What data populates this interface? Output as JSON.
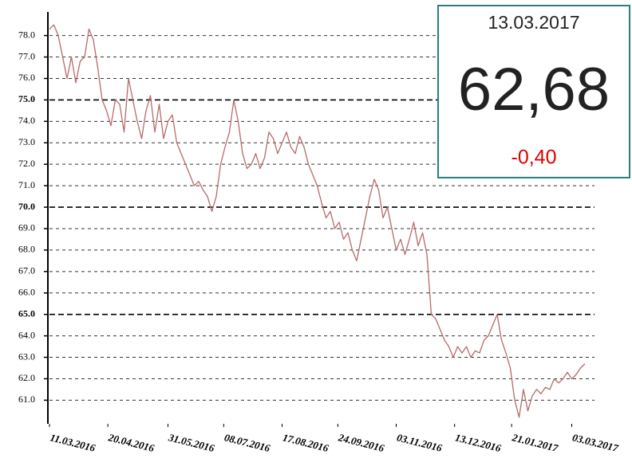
{
  "chart_data": {
    "type": "line",
    "series": [
      {
        "color": "#b86a6a",
        "values": [
          78.3,
          78.5,
          78.0,
          77.0,
          76.0,
          77.0,
          75.8,
          76.8,
          77.0,
          78.3,
          77.8,
          76.5,
          75.0,
          74.5,
          73.8,
          75.0,
          74.8,
          73.5,
          76.0,
          75.0,
          74.0,
          73.2,
          74.5,
          75.2,
          73.5,
          74.8,
          73.2,
          74.0,
          74.3,
          73.0,
          72.5,
          72.0,
          71.5,
          71.0,
          71.2,
          70.8,
          70.5,
          69.8,
          70.5,
          72.0,
          72.8,
          73.5,
          75.0,
          74.0,
          72.5,
          71.8,
          72.0,
          72.5,
          71.8,
          72.3,
          73.5,
          73.2,
          72.5,
          73.0,
          73.5,
          72.8,
          72.5,
          73.3,
          72.8,
          72.0,
          71.5,
          71.0,
          70.2,
          69.5,
          69.8,
          69.0,
          69.3,
          68.5,
          68.8,
          68.0,
          67.5,
          68.5,
          69.5,
          70.5,
          71.3,
          70.8,
          69.5,
          70.0,
          69.0,
          68.0,
          68.5,
          67.8,
          68.5,
          69.3,
          68.2,
          68.8,
          67.8,
          65.0,
          64.8,
          64.3,
          63.8,
          63.5,
          63.0,
          63.5,
          63.2,
          63.5,
          63.0,
          63.3,
          63.2,
          63.8,
          64.0,
          64.5,
          65.0,
          63.8,
          63.2,
          62.5,
          61.0,
          60.2,
          61.5,
          60.5,
          61.2,
          61.5,
          61.3,
          61.6,
          61.5,
          62.0,
          61.8,
          62.0,
          62.3,
          62.0,
          62.2,
          62.5,
          62.7
        ]
      }
    ],
    "xlim": [
      0,
      122
    ],
    "xticks": [
      {
        "value": 0,
        "label": "11.03.2016"
      },
      {
        "value": 13.3,
        "label": "20.04.2016"
      },
      {
        "value": 27,
        "label": "31.05.2016"
      },
      {
        "value": 39.7,
        "label": "08.07.2016"
      },
      {
        "value": 53,
        "label": "17.08.2016"
      },
      {
        "value": 65.7,
        "label": "24.09.2016"
      },
      {
        "value": 79,
        "label": "03.11.2016"
      },
      {
        "value": 92.3,
        "label": "13.12.2016"
      },
      {
        "value": 105.3,
        "label": "21.01.2017"
      },
      {
        "value": 119,
        "label": "03.03.2017"
      }
    ],
    "ylim": [
      59.9,
      79.1
    ],
    "yticks": [
      {
        "value": 61,
        "label": "61.0"
      },
      {
        "value": 62,
        "label": "62.0"
      },
      {
        "value": 63,
        "label": "63.0"
      },
      {
        "value": 64,
        "label": "64.0"
      },
      {
        "value": 65,
        "label": "65.0",
        "emphasis": true
      },
      {
        "value": 66,
        "label": "66.0"
      },
      {
        "value": 67,
        "label": "67.0"
      },
      {
        "value": 68,
        "label": "68.0"
      },
      {
        "value": 69,
        "label": "69.0"
      },
      {
        "value": 70,
        "label": "70.0",
        "emphasis": true
      },
      {
        "value": 71,
        "label": "71.0"
      },
      {
        "value": 72,
        "label": "72.0"
      },
      {
        "value": 73,
        "label": "73.0"
      },
      {
        "value": 74,
        "label": "74.0"
      },
      {
        "value": 75,
        "label": "75.0",
        "emphasis": true
      },
      {
        "value": 76,
        "label": "76.0"
      },
      {
        "value": 77,
        "label": "77.0"
      },
      {
        "value": 78,
        "label": "78.0"
      }
    ],
    "grid": true,
    "info_box": {
      "date": "13.03.2017",
      "value": "62,68",
      "change": "-0,40",
      "change_color": "#e00000",
      "border_color": "#2a7f7f"
    }
  }
}
